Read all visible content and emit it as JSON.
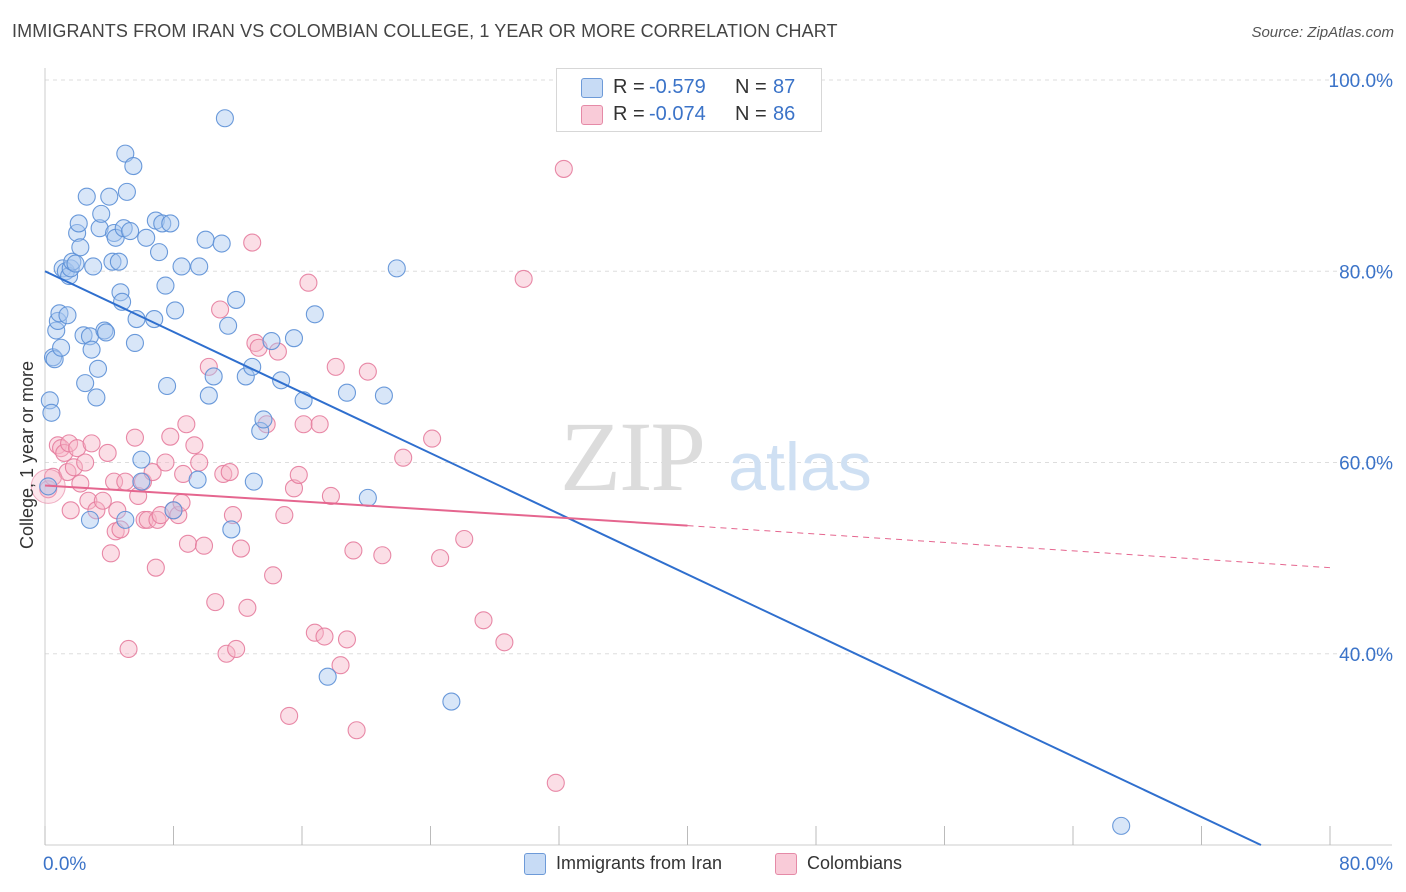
{
  "title": "IMMIGRANTS FROM IRAN VS COLOMBIAN COLLEGE, 1 YEAR OR MORE CORRELATION CHART",
  "source": "Source: ZipAtlas.com",
  "watermark": {
    "zip": "ZIP",
    "atlas": "atlas"
  },
  "legend": {
    "r_label": "R =",
    "n_label": "N =",
    "rows": [
      {
        "r": "-0.579",
        "n": "87"
      },
      {
        "r": "-0.074",
        "n": "86"
      }
    ]
  },
  "colors": {
    "blue_fill": "#a9c8f0",
    "blue_stroke": "#5b8fd6",
    "blue_line": "#2f6fce",
    "pink_fill": "#f6b6c8",
    "pink_stroke": "#e57c9d",
    "pink_line": "#e5668f",
    "tick_text": "#3b73c8",
    "grid": "#dddddd"
  },
  "chart_data": {
    "type": "scatter",
    "ylabel": "College, 1 year or more",
    "xlim": [
      0,
      80
    ],
    "ylim": [
      20,
      100
    ],
    "x_tick_labels": [
      "0.0%",
      "80.0%"
    ],
    "y_ticks": [
      40,
      60,
      80,
      100
    ],
    "y_tick_labels": [
      "40.0%",
      "60.0%",
      "80.0%",
      "100.0%"
    ],
    "grid": true,
    "legend_position": "bottom",
    "series": [
      {
        "name": "Immigrants from Iran",
        "color": "blue",
        "trend": {
          "x1": 0,
          "y1": 80.0,
          "x2": 75.7,
          "y2": 20.0,
          "dashed_to": null
        },
        "points": [
          [
            0.2,
            57.5
          ],
          [
            0.3,
            66.5
          ],
          [
            0.4,
            65.2
          ],
          [
            0.5,
            71.0
          ],
          [
            0.6,
            70.8
          ],
          [
            0.7,
            73.8
          ],
          [
            0.8,
            74.8
          ],
          [
            0.9,
            75.6
          ],
          [
            1.0,
            72.0
          ],
          [
            1.1,
            80.3
          ],
          [
            1.3,
            80.0
          ],
          [
            1.4,
            75.4
          ],
          [
            1.5,
            79.5
          ],
          [
            1.6,
            80.3
          ],
          [
            1.7,
            81.0
          ],
          [
            1.9,
            80.8
          ],
          [
            2.0,
            84.0
          ],
          [
            2.1,
            85.0
          ],
          [
            2.2,
            82.5
          ],
          [
            2.4,
            73.3
          ],
          [
            2.5,
            68.3
          ],
          [
            2.6,
            87.8
          ],
          [
            2.8,
            73.2
          ],
          [
            2.9,
            71.8
          ],
          [
            3.0,
            80.5
          ],
          [
            3.2,
            66.8
          ],
          [
            3.3,
            69.8
          ],
          [
            3.4,
            84.5
          ],
          [
            3.5,
            86.0
          ],
          [
            3.7,
            73.8
          ],
          [
            3.8,
            73.6
          ],
          [
            4.0,
            87.8
          ],
          [
            4.2,
            81.0
          ],
          [
            4.3,
            84.0
          ],
          [
            4.4,
            83.5
          ],
          [
            4.6,
            81.0
          ],
          [
            4.7,
            77.8
          ],
          [
            4.8,
            76.8
          ],
          [
            4.9,
            84.5
          ],
          [
            5.0,
            92.3
          ],
          [
            5.1,
            88.3
          ],
          [
            5.3,
            84.2
          ],
          [
            5.5,
            91.0
          ],
          [
            5.6,
            72.5
          ],
          [
            5.7,
            75.0
          ],
          [
            6.0,
            60.3
          ],
          [
            6.3,
            83.5
          ],
          [
            6.8,
            75.0
          ],
          [
            6.9,
            85.3
          ],
          [
            7.1,
            82.0
          ],
          [
            7.3,
            85.0
          ],
          [
            7.5,
            78.5
          ],
          [
            7.6,
            68.0
          ],
          [
            7.8,
            85.0
          ],
          [
            8.1,
            75.9
          ],
          [
            8.5,
            80.5
          ],
          [
            9.5,
            58.2
          ],
          [
            9.6,
            80.5
          ],
          [
            10.0,
            83.3
          ],
          [
            10.2,
            67.0
          ],
          [
            10.5,
            69.0
          ],
          [
            11.0,
            82.9
          ],
          [
            11.2,
            96.0
          ],
          [
            11.4,
            74.3
          ],
          [
            11.6,
            53.0
          ],
          [
            11.9,
            77.0
          ],
          [
            12.5,
            69.0
          ],
          [
            12.9,
            70.0
          ],
          [
            13.4,
            63.3
          ],
          [
            13.6,
            64.5
          ],
          [
            14.1,
            72.7
          ],
          [
            14.7,
            68.6
          ],
          [
            15.5,
            73.0
          ],
          [
            16.1,
            66.5
          ],
          [
            16.8,
            75.5
          ],
          [
            17.6,
            37.6
          ],
          [
            18.8,
            67.3
          ],
          [
            20.1,
            56.3
          ],
          [
            21.1,
            67.0
          ],
          [
            21.9,
            80.3
          ],
          [
            25.3,
            35.0
          ],
          [
            67.0,
            22.0
          ],
          [
            2.8,
            54.0
          ],
          [
            5.0,
            54.0
          ],
          [
            6.0,
            58.0
          ],
          [
            8.0,
            55.0
          ],
          [
            13.0,
            58.0
          ]
        ]
      },
      {
        "name": "Colombians",
        "color": "pink",
        "trend": {
          "x1": 0,
          "y1": 57.6,
          "x2": 40.0,
          "y2": 53.4,
          "dashed_to": {
            "x": 80.0,
            "y": 49.0
          }
        },
        "points": [
          [
            0.2,
            57.2
          ],
          [
            0.5,
            58.5
          ],
          [
            0.8,
            61.8
          ],
          [
            1.0,
            61.5
          ],
          [
            1.2,
            61.0
          ],
          [
            1.4,
            59.0
          ],
          [
            1.5,
            62.0
          ],
          [
            1.6,
            55.0
          ],
          [
            1.8,
            59.5
          ],
          [
            2.0,
            61.5
          ],
          [
            2.2,
            57.8
          ],
          [
            2.5,
            60.0
          ],
          [
            2.7,
            56.0
          ],
          [
            2.9,
            62.0
          ],
          [
            3.2,
            55.0
          ],
          [
            3.6,
            56.0
          ],
          [
            3.9,
            61.0
          ],
          [
            4.1,
            50.5
          ],
          [
            4.3,
            58.0
          ],
          [
            4.4,
            52.8
          ],
          [
            4.5,
            55.0
          ],
          [
            4.7,
            53.0
          ],
          [
            5.0,
            58.0
          ],
          [
            5.2,
            40.5
          ],
          [
            5.6,
            62.6
          ],
          [
            5.8,
            56.5
          ],
          [
            6.1,
            58.0
          ],
          [
            6.2,
            54.0
          ],
          [
            6.4,
            54.0
          ],
          [
            6.7,
            59.0
          ],
          [
            6.9,
            49.0
          ],
          [
            7.0,
            54.0
          ],
          [
            7.2,
            54.5
          ],
          [
            7.5,
            60.0
          ],
          [
            7.8,
            62.7
          ],
          [
            8.0,
            55.0
          ],
          [
            8.3,
            54.5
          ],
          [
            8.5,
            55.8
          ],
          [
            8.6,
            58.8
          ],
          [
            8.8,
            64.0
          ],
          [
            8.9,
            51.5
          ],
          [
            9.3,
            61.8
          ],
          [
            9.6,
            60.0
          ],
          [
            9.9,
            51.3
          ],
          [
            10.2,
            70.0
          ],
          [
            10.6,
            45.4
          ],
          [
            10.9,
            76.0
          ],
          [
            11.1,
            58.8
          ],
          [
            11.3,
            40.0
          ],
          [
            11.5,
            59.0
          ],
          [
            11.7,
            54.5
          ],
          [
            11.9,
            40.5
          ],
          [
            12.2,
            51.0
          ],
          [
            12.6,
            44.8
          ],
          [
            12.9,
            83.0
          ],
          [
            13.1,
            72.5
          ],
          [
            13.3,
            72.0
          ],
          [
            13.8,
            64.0
          ],
          [
            14.2,
            48.2
          ],
          [
            14.5,
            71.6
          ],
          [
            14.9,
            54.5
          ],
          [
            15.2,
            33.5
          ],
          [
            15.5,
            57.3
          ],
          [
            15.8,
            58.7
          ],
          [
            16.1,
            64.0
          ],
          [
            16.4,
            78.8
          ],
          [
            16.8,
            42.2
          ],
          [
            17.1,
            64.0
          ],
          [
            17.4,
            41.8
          ],
          [
            17.8,
            56.5
          ],
          [
            18.1,
            70.0
          ],
          [
            18.4,
            38.8
          ],
          [
            18.8,
            41.5
          ],
          [
            19.2,
            50.8
          ],
          [
            19.4,
            32.0
          ],
          [
            20.1,
            69.5
          ],
          [
            21.0,
            50.3
          ],
          [
            22.3,
            60.5
          ],
          [
            24.1,
            62.5
          ],
          [
            24.6,
            50.0
          ],
          [
            26.1,
            52.0
          ],
          [
            27.3,
            43.5
          ],
          [
            28.6,
            41.2
          ],
          [
            29.8,
            79.2
          ],
          [
            31.8,
            26.5
          ],
          [
            32.3,
            90.7
          ]
        ]
      }
    ]
  }
}
